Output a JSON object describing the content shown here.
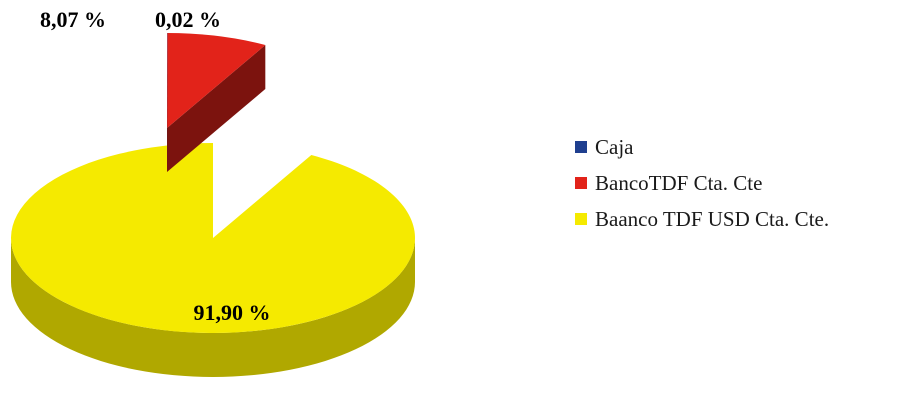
{
  "chart_data": {
    "type": "pie",
    "style": "3d-exploded",
    "title": "",
    "series": [
      {
        "name": "Caja",
        "value": 0.02,
        "label": "0,02 %",
        "color": "#1f3f8f"
      },
      {
        "name": "BancoTDF Cta. Cte",
        "value": 8.07,
        "label": "8,07 %",
        "color": "#e2231a"
      },
      {
        "name": "Baanco TDF USD Cta. Cte.",
        "value": 91.9,
        "label": "91,90 %",
        "color": "#f5ea00"
      }
    ],
    "legend_position": "right"
  }
}
